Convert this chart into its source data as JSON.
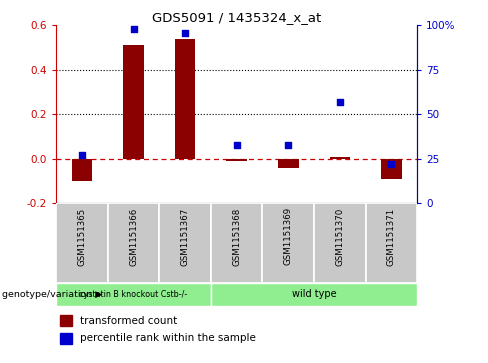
{
  "title": "GDS5091 / 1435324_x_at",
  "samples": [
    "GSM1151365",
    "GSM1151366",
    "GSM1151367",
    "GSM1151368",
    "GSM1151369",
    "GSM1151370",
    "GSM1151371"
  ],
  "transformed_count": [
    -0.1,
    0.51,
    0.54,
    -0.01,
    -0.04,
    0.01,
    -0.09
  ],
  "percentile_rank": [
    27,
    98,
    96,
    33,
    33,
    57,
    22
  ],
  "groups": [
    {
      "label": "cystatin B knockout Cstb-/-",
      "start": 0,
      "end": 3,
      "color": "#90EE90"
    },
    {
      "label": "wild type",
      "start": 3,
      "end": 7,
      "color": "#90EE90"
    }
  ],
  "group_boundary": 3,
  "ylim_left": [
    -0.2,
    0.6
  ],
  "ylim_right": [
    0,
    100
  ],
  "yticks_left": [
    -0.2,
    0.0,
    0.2,
    0.4,
    0.6
  ],
  "yticks_right": [
    0,
    25,
    50,
    75,
    100
  ],
  "bar_color": "#8B0000",
  "dot_color": "#0000CD",
  "zero_line_color": "#CC0000",
  "left_label_color": "#CC0000",
  "right_label_color": "#0000CC",
  "legend_bar_label": "transformed count",
  "legend_dot_label": "percentile rank within the sample",
  "genotype_label": "genotype/variation",
  "background_color": "#ffffff"
}
